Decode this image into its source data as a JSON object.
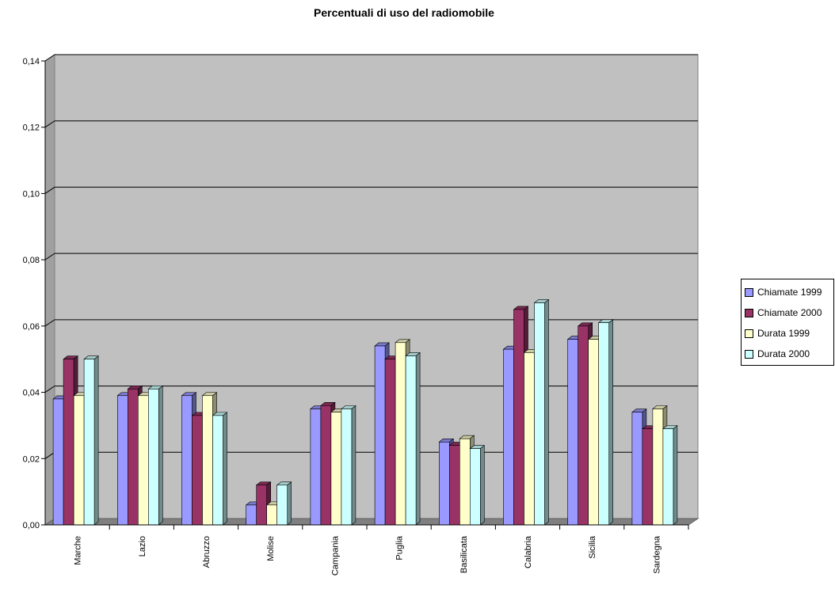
{
  "chart_data": {
    "type": "bar",
    "title": "Percentuali di uso del radiomobile",
    "categories": [
      "Marche",
      "Lazio",
      "Abruzzo",
      "Molise",
      "Campania",
      "Puglia",
      "Basilicata",
      "Calabria",
      "Sicilia",
      "Sardegna"
    ],
    "series": [
      {
        "name": "Chiamate 1999",
        "color": "#9999ff",
        "values": [
          0.038,
          0.039,
          0.039,
          0.006,
          0.035,
          0.054,
          0.025,
          0.053,
          0.056,
          0.034
        ]
      },
      {
        "name": "Chiamate 2000",
        "color": "#993366",
        "values": [
          0.05,
          0.041,
          0.033,
          0.012,
          0.036,
          0.05,
          0.024,
          0.065,
          0.06,
          0.029
        ]
      },
      {
        "name": "Durata 1999",
        "color": "#ffffcc",
        "values": [
          0.039,
          0.039,
          0.039,
          0.006,
          0.034,
          0.055,
          0.026,
          0.052,
          0.056,
          0.035
        ]
      },
      {
        "name": "Durata 2000",
        "color": "#ccffff",
        "values": [
          0.05,
          0.041,
          0.033,
          0.012,
          0.035,
          0.051,
          0.023,
          0.067,
          0.061,
          0.029
        ]
      }
    ],
    "yticks": [
      "0,00",
      "0,02",
      "0,04",
      "0,06",
      "0,08",
      "0,10",
      "0,12",
      "0,14"
    ],
    "ylim": [
      0,
      0.14
    ],
    "grid": true,
    "legend_position": "right",
    "background_color": "#c0c0c0"
  }
}
